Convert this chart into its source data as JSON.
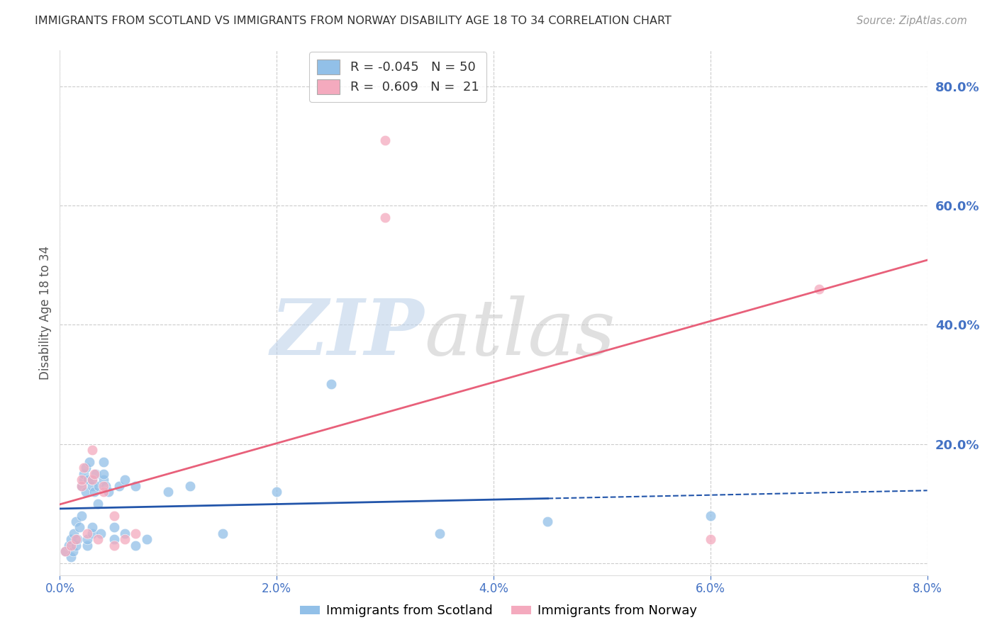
{
  "title": "IMMIGRANTS FROM SCOTLAND VS IMMIGRANTS FROM NORWAY DISABILITY AGE 18 TO 34 CORRELATION CHART",
  "source": "Source: ZipAtlas.com",
  "ylabel": "Disability Age 18 to 34",
  "legend_labels": [
    "Immigrants from Scotland",
    "Immigrants from Norway"
  ],
  "scotland_R": -0.045,
  "scotland_N": 50,
  "norway_R": 0.609,
  "norway_N": 21,
  "xlim": [
    0.0,
    0.08
  ],
  "ylim": [
    -0.02,
    0.86
  ],
  "yticks": [
    0.0,
    0.2,
    0.4,
    0.6,
    0.8
  ],
  "xticks": [
    0.0,
    0.02,
    0.04,
    0.06,
    0.08
  ],
  "xtick_labels": [
    "0.0%",
    "2.0%",
    "4.0%",
    "6.0%",
    "8.0%"
  ],
  "ytick_labels": [
    "",
    "20.0%",
    "40.0%",
    "60.0%",
    "80.0%"
  ],
  "scotland_color": "#92C0E8",
  "norway_color": "#F4AABE",
  "scotland_line_color": "#2255AA",
  "norway_line_color": "#E8607A",
  "axis_color": "#4472C4",
  "grid_color": "#CCCCCC",
  "background_color": "#FFFFFF",
  "scot_x": [
    0.0005,
    0.0008,
    0.001,
    0.001,
    0.0012,
    0.0013,
    0.0015,
    0.0015,
    0.0016,
    0.0018,
    0.002,
    0.002,
    0.0022,
    0.0022,
    0.0024,
    0.0024,
    0.0025,
    0.0025,
    0.0026,
    0.0027,
    0.003,
    0.003,
    0.003,
    0.003,
    0.0032,
    0.0033,
    0.0035,
    0.0036,
    0.0038,
    0.004,
    0.004,
    0.004,
    0.0042,
    0.0045,
    0.005,
    0.005,
    0.0055,
    0.006,
    0.006,
    0.007,
    0.007,
    0.008,
    0.01,
    0.012,
    0.015,
    0.02,
    0.025,
    0.035,
    0.045,
    0.06
  ],
  "scot_y": [
    0.02,
    0.03,
    0.01,
    0.04,
    0.02,
    0.05,
    0.03,
    0.07,
    0.04,
    0.06,
    0.08,
    0.13,
    0.14,
    0.15,
    0.12,
    0.16,
    0.03,
    0.04,
    0.14,
    0.17,
    0.05,
    0.06,
    0.13,
    0.14,
    0.12,
    0.15,
    0.1,
    0.13,
    0.05,
    0.14,
    0.15,
    0.17,
    0.13,
    0.12,
    0.04,
    0.06,
    0.13,
    0.14,
    0.05,
    0.13,
    0.03,
    0.04,
    0.12,
    0.13,
    0.05,
    0.12,
    0.3,
    0.05,
    0.07,
    0.08
  ],
  "norw_x": [
    0.0005,
    0.001,
    0.0015,
    0.002,
    0.002,
    0.0022,
    0.0025,
    0.003,
    0.003,
    0.0032,
    0.0035,
    0.004,
    0.004,
    0.005,
    0.005,
    0.006,
    0.007,
    0.03,
    0.03,
    0.07,
    0.06
  ],
  "norw_y": [
    0.02,
    0.03,
    0.04,
    0.13,
    0.14,
    0.16,
    0.05,
    0.14,
    0.19,
    0.15,
    0.04,
    0.12,
    0.13,
    0.03,
    0.08,
    0.04,
    0.05,
    0.71,
    0.58,
    0.46,
    0.04
  ]
}
